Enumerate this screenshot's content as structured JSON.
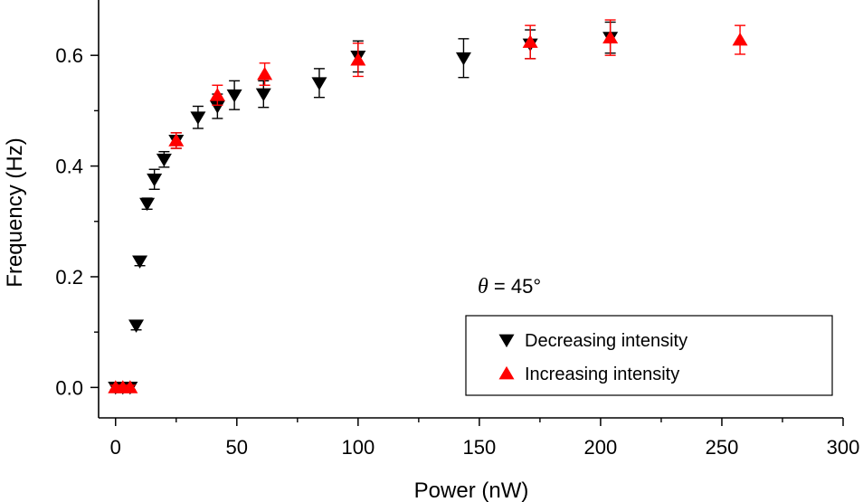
{
  "chart_data": {
    "type": "scatter",
    "title": "",
    "xlabel": "Power (nW)",
    "ylabel": "Frequency (Hz)",
    "xlim": [
      -7,
      300
    ],
    "ylim": [
      -0.055,
      0.7
    ],
    "xticks": [
      0,
      50,
      100,
      150,
      200,
      250,
      300
    ],
    "xtick_labels": [
      "0",
      "50",
      "100",
      "150",
      "200",
      "250",
      "300"
    ],
    "yticks": [
      0.0,
      0.2,
      0.4,
      0.6
    ],
    "ytick_labels": [
      "0.0",
      "0.2",
      "0.4",
      "0.6"
    ],
    "grid": false,
    "legend_position": "bottom-right",
    "annotation": {
      "symbol": "θ",
      "text": " = 45°"
    },
    "series": [
      {
        "name": "Decreasing intensity",
        "color": "#000000",
        "marker": "triangle-down",
        "points": [
          {
            "x": 0,
            "y": 0.0,
            "err": 0.004
          },
          {
            "x": 3,
            "y": 0.0,
            "err": 0.004
          },
          {
            "x": 6,
            "y": 0.0,
            "err": 0.004
          },
          {
            "x": 8.5,
            "y": 0.112,
            "err": 0.008
          },
          {
            "x": 10,
            "y": 0.228,
            "err": 0.008
          },
          {
            "x": 13,
            "y": 0.332,
            "err": 0.01
          },
          {
            "x": 16,
            "y": 0.376,
            "err": 0.018
          },
          {
            "x": 20,
            "y": 0.412,
            "err": 0.014
          },
          {
            "x": 25,
            "y": 0.446,
            "err": 0.014
          },
          {
            "x": 34,
            "y": 0.488,
            "err": 0.02
          },
          {
            "x": 42,
            "y": 0.508,
            "err": 0.022
          },
          {
            "x": 49,
            "y": 0.528,
            "err": 0.026
          },
          {
            "x": 61,
            "y": 0.53,
            "err": 0.024
          },
          {
            "x": 84,
            "y": 0.55,
            "err": 0.026
          },
          {
            "x": 100,
            "y": 0.598,
            "err": 0.028
          },
          {
            "x": 143.5,
            "y": 0.595,
            "err": 0.035
          },
          {
            "x": 171,
            "y": 0.62,
            "err": 0.026
          },
          {
            "x": 204,
            "y": 0.632,
            "err": 0.028
          }
        ]
      },
      {
        "name": "Increasing intensity",
        "color": "#ff0000",
        "marker": "triangle-up",
        "points": [
          {
            "x": 0,
            "y": 0.0,
            "err": 0.004
          },
          {
            "x": 3,
            "y": 0.0,
            "err": 0.004
          },
          {
            "x": 6,
            "y": 0.0,
            "err": 0.004
          },
          {
            "x": 25,
            "y": 0.446,
            "err": 0.014
          },
          {
            "x": 42,
            "y": 0.528,
            "err": 0.018
          },
          {
            "x": 61.5,
            "y": 0.566,
            "err": 0.02
          },
          {
            "x": 100,
            "y": 0.592,
            "err": 0.03
          },
          {
            "x": 171,
            "y": 0.624,
            "err": 0.03
          },
          {
            "x": 204,
            "y": 0.632,
            "err": 0.032
          },
          {
            "x": 257.5,
            "y": 0.628,
            "err": 0.026
          }
        ]
      }
    ]
  }
}
